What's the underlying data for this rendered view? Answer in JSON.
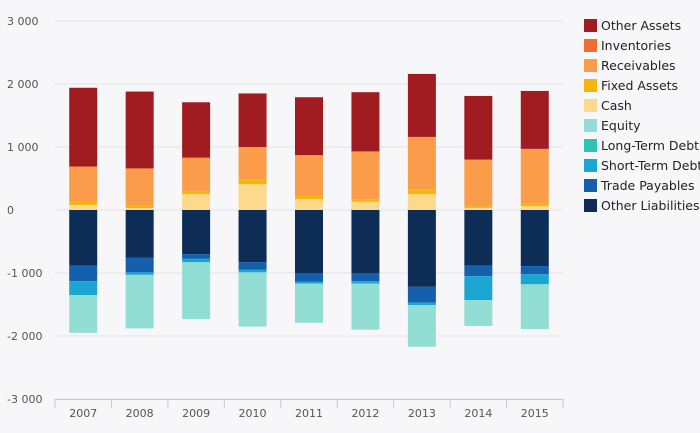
{
  "chart_data": {
    "type": "bar",
    "stacked": true,
    "title": "",
    "xlabel": "",
    "ylabel": "",
    "categories": [
      "2007",
      "2008",
      "2009",
      "2010",
      "2011",
      "2012",
      "2013",
      "2014",
      "2015"
    ],
    "ylim": [
      -3000,
      3000
    ],
    "yticks": [
      3000,
      2000,
      1000,
      0,
      -1000,
      -2000,
      -3000
    ],
    "ytick_labels": [
      "3 000",
      "2 000",
      "1 000",
      "0",
      "-1 000",
      "-2 000",
      "-3 000"
    ],
    "grid": true,
    "legend_position": "right",
    "series": [
      {
        "name": "Other Liabilities",
        "color": "#0d2d57",
        "values": [
          -880,
          -760,
          -700,
          -830,
          -1000,
          -1000,
          -1220,
          -880,
          -890
        ]
      },
      {
        "name": "Trade Payables",
        "color": "#1560ad",
        "values": [
          -250,
          -230,
          -70,
          -120,
          -140,
          -130,
          -250,
          -170,
          -130
        ]
      },
      {
        "name": "Short-Term Debt",
        "color": "#1aa6d1",
        "values": [
          -220,
          -40,
          -60,
          -40,
          -30,
          -40,
          -40,
          -380,
          -160
        ]
      },
      {
        "name": "Long-Term Debt",
        "color": "#2ec4b4",
        "values": [
          0,
          0,
          0,
          0,
          0,
          0,
          0,
          0,
          0
        ]
      },
      {
        "name": "Equity",
        "color": "#92ddd4",
        "values": [
          -600,
          -850,
          -900,
          -860,
          -620,
          -730,
          -660,
          -410,
          -710
        ]
      },
      {
        "name": "Cash",
        "color": "#fdd98b",
        "values": [
          80,
          30,
          250,
          410,
          170,
          130,
          250,
          30,
          60
        ]
      },
      {
        "name": "Fixed Assets",
        "color": "#f5b50f",
        "values": [
          50,
          40,
          50,
          80,
          60,
          40,
          80,
          30,
          40
        ]
      },
      {
        "name": "Receivables",
        "color": "#fb9c4a",
        "values": [
          560,
          590,
          530,
          510,
          640,
          760,
          830,
          740,
          870
        ]
      },
      {
        "name": "Inventories",
        "color": "#f26b31",
        "values": [
          0,
          0,
          0,
          0,
          0,
          0,
          0,
          0,
          0
        ]
      },
      {
        "name": "Other Assets",
        "color": "#a01c21",
        "values": [
          1250,
          1220,
          880,
          850,
          920,
          940,
          1000,
          1010,
          920
        ]
      }
    ],
    "legend_order": [
      "Other Assets",
      "Inventories",
      "Receivables",
      "Fixed Assets",
      "Cash",
      "Equity",
      "Long-Term Debt",
      "Short-Term Debt",
      "Trade Payables",
      "Other Liabilities"
    ]
  }
}
